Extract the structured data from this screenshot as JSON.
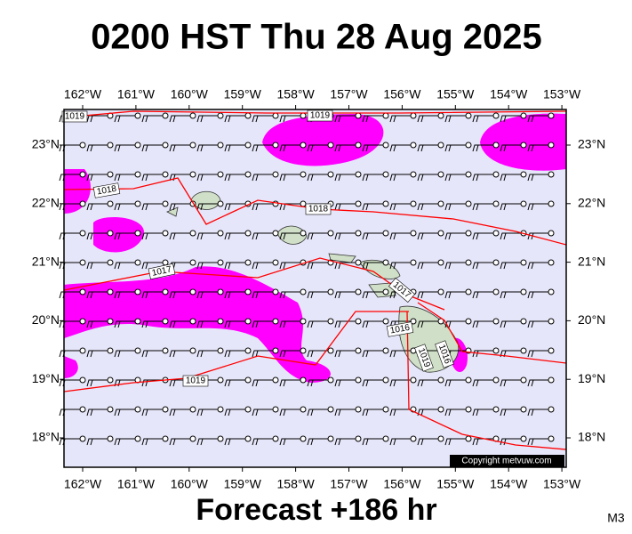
{
  "header": {
    "title": "0200 HST Thu 28 Aug 2025"
  },
  "axes": {
    "lon_labels": [
      "162°W",
      "161°W",
      "160°W",
      "159°W",
      "158°W",
      "157°W",
      "156°W",
      "155°W",
      "154°W",
      "153°W"
    ],
    "lat_labels": [
      "23°N",
      "22°N",
      "21°N",
      "20°N",
      "19°N",
      "18°N"
    ]
  },
  "isobar_labels": [
    "1019",
    "1019",
    "1018",
    "1018",
    "1017",
    "1017",
    "1016",
    "1019",
    "1016",
    "1019"
  ],
  "copyright": "Copyright metvuw.com",
  "footer": {
    "forecast": "Forecast +186 hr",
    "model": "M3"
  }
}
